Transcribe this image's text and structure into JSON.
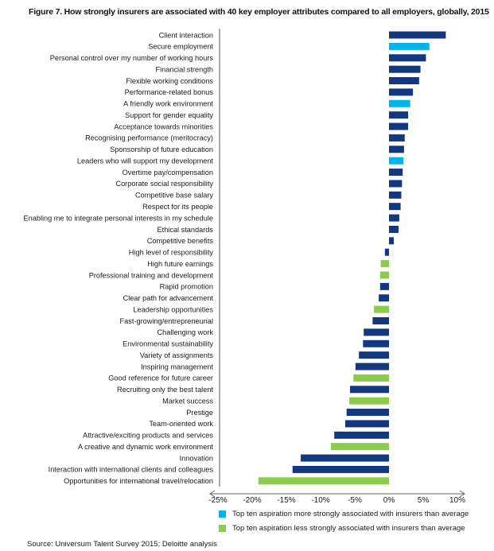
{
  "chart_data": {
    "type": "bar",
    "orientation": "horizontal",
    "title": "Figure 7. How strongly insurers are associated with 40 key employer attributes compared to all employers, globally, 2015",
    "xlabel": "",
    "ylabel": "",
    "xlim": [
      -25,
      10
    ],
    "x_ticks": [
      -25,
      -20,
      -15,
      -10,
      -5,
      0,
      5,
      10
    ],
    "x_tick_labels": [
      "-25%",
      "-20%",
      "-15%",
      "-10%",
      "-5%",
      "0%",
      "5%",
      "10%"
    ],
    "grid": false,
    "legend_position": "bottom-right",
    "colors": {
      "default": "#14387f",
      "top_ten_more": "#00b3e8",
      "top_ten_less": "#8ccb4b"
    },
    "legend": [
      {
        "key": "top_ten_more",
        "label": "Top ten aspiration more strongly associated with insurers than average"
      },
      {
        "key": "top_ten_less",
        "label": "Top ten aspiration less strongly associated with insurers than average"
      }
    ],
    "categories": [
      "Client interaction",
      "Secure employment",
      "Personal control over my number of working hours",
      "Financial strength",
      "Flexible working conditions",
      "Performance-related bonus",
      "A friendly work environment",
      "Support for gender equality",
      "Acceptance towards minorities",
      "Recognising performance (meritocracy)",
      "Sponsorship of future education",
      "Leaders who will support my development",
      "Overtime pay/compensation",
      "Corporate social responsibility",
      "Competitive base salary",
      "Respect for its people",
      "Enabling me to integrate personal interests in my schedule",
      "Ethical standards",
      "Competitive benefits",
      "High level of responsibility",
      "High future earnings",
      "Professional training and development",
      "Rapid promotion",
      "Clear path for advancement",
      "Leadership opportunities",
      "Fast-growing/entrepreneurial",
      "Challenging work",
      "Environmental sustainability",
      "Variety of assignments",
      "Inspiring management",
      "Good reference for future career",
      "Recruiting only the best talent",
      "Market success",
      "Prestige",
      "Team-oriented work",
      "Attractive/exciting products and services",
      "A creative and dynamic work environment",
      "Innovation",
      "Interaction with international clients and colleagues",
      "Opportunities for international travel/relocation"
    ],
    "values": [
      8.3,
      5.9,
      5.4,
      4.6,
      4.4,
      3.5,
      3.1,
      2.8,
      2.8,
      2.3,
      2.2,
      2.1,
      2.0,
      1.9,
      1.8,
      1.7,
      1.5,
      1.4,
      0.7,
      -0.6,
      -1.2,
      -1.3,
      -1.3,
      -1.5,
      -2.2,
      -2.4,
      -3.7,
      -3.8,
      -4.4,
      -4.9,
      -5.2,
      -5.7,
      -5.8,
      -6.2,
      -6.4,
      -8.0,
      -8.5,
      -12.9,
      -14.1,
      -19.1
    ],
    "groups": [
      "default",
      "top_ten_more",
      "default",
      "default",
      "default",
      "default",
      "top_ten_more",
      "default",
      "default",
      "default",
      "default",
      "top_ten_more",
      "default",
      "default",
      "default",
      "default",
      "default",
      "default",
      "default",
      "default",
      "top_ten_less",
      "top_ten_less",
      "default",
      "default",
      "top_ten_less",
      "default",
      "default",
      "default",
      "default",
      "default",
      "top_ten_less",
      "default",
      "top_ten_less",
      "default",
      "default",
      "default",
      "top_ten_less",
      "default",
      "default",
      "top_ten_less"
    ]
  },
  "source": "Source: Universum Talent Survey 2015; Deloitte analysis"
}
